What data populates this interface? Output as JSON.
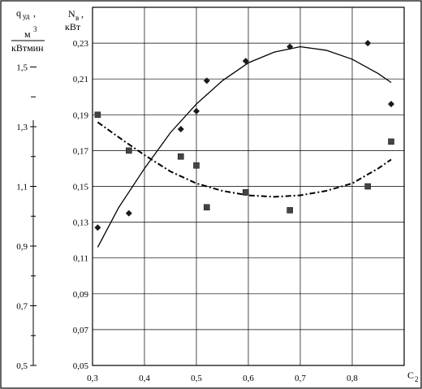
{
  "chart_data": {
    "type": "scatter",
    "x_axis": {
      "label_main": "C",
      "label_sub": "2",
      "range": [
        0.3,
        0.9
      ],
      "ticks": [
        "0,3",
        "0,4",
        "0,5",
        "0,6",
        "0,7",
        "0,8"
      ]
    },
    "y_axis_right": {
      "label_main": "N",
      "label_sub": "в",
      "label_suffix": ",",
      "unit": "кВт",
      "range": [
        0.05,
        0.25
      ],
      "ticks": [
        "0,05",
        "0,07",
        "0,09",
        "0,11",
        "0,13",
        "0,15",
        "0,17",
        "0,19",
        "0,21",
        "0,23"
      ]
    },
    "y_axis_left": {
      "label_main": "q",
      "label_sub": "уд",
      "label_suffix": ",",
      "unit_top": "м",
      "unit_top_sup": "3",
      "unit_bottom": "кВтмин",
      "range": [
        0.5,
        1.7
      ],
      "ticks": [
        "0,5",
        "0,7",
        "0,9",
        "1,1",
        "1,3",
        "1,5"
      ]
    },
    "grid": true,
    "series": [
      {
        "marker": "diamond",
        "axis": "right",
        "points": [
          [
            0.31,
            0.127
          ],
          [
            0.37,
            0.135
          ],
          [
            0.47,
            0.182
          ],
          [
            0.5,
            0.192
          ],
          [
            0.52,
            0.209
          ],
          [
            0.595,
            0.22
          ],
          [
            0.68,
            0.228
          ],
          [
            0.83,
            0.23
          ],
          [
            0.875,
            0.196
          ]
        ],
        "trend": {
          "style": "solid",
          "x_start": 0.31,
          "x_end": 0.875,
          "curve": [
            [
              0.31,
              0.116
            ],
            [
              0.35,
              0.138
            ],
            [
              0.4,
              0.16
            ],
            [
              0.45,
              0.18
            ],
            [
              0.5,
              0.196
            ],
            [
              0.55,
              0.209
            ],
            [
              0.6,
              0.219
            ],
            [
              0.65,
              0.225
            ],
            [
              0.7,
              0.228
            ],
            [
              0.75,
              0.226
            ],
            [
              0.8,
              0.221
            ],
            [
              0.85,
              0.213
            ],
            [
              0.875,
              0.208
            ]
          ]
        }
      },
      {
        "marker": "square",
        "axis": "left",
        "points": [
          [
            0.31,
            1.34
          ],
          [
            0.37,
            1.22
          ],
          [
            0.47,
            1.2
          ],
          [
            0.5,
            1.17
          ],
          [
            0.52,
            1.03
          ],
          [
            0.595,
            1.08
          ],
          [
            0.68,
            1.02
          ],
          [
            0.83,
            1.1
          ],
          [
            0.875,
            1.25
          ]
        ],
        "trend": {
          "style": "dash-dot",
          "x_start": 0.31,
          "x_end": 0.875,
          "curve": [
            [
              0.31,
              1.315
            ],
            [
              0.35,
              1.265
            ],
            [
              0.4,
              1.205
            ],
            [
              0.45,
              1.15
            ],
            [
              0.5,
              1.11
            ],
            [
              0.55,
              1.085
            ],
            [
              0.6,
              1.07
            ],
            [
              0.65,
              1.065
            ],
            [
              0.7,
              1.07
            ],
            [
              0.75,
              1.085
            ],
            [
              0.8,
              1.11
            ],
            [
              0.85,
              1.16
            ],
            [
              0.875,
              1.19
            ]
          ]
        }
      }
    ]
  }
}
